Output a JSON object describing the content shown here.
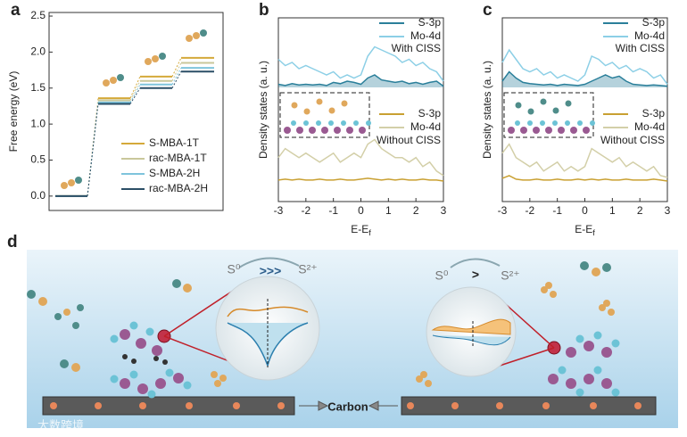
{
  "chart_data": [
    {
      "type": "step",
      "panel": "a",
      "ylabel": "Free energy (eV)",
      "ylim": [
        -0.2,
        2.55
      ],
      "yticks": [
        {
          "value": 0,
          "label": "0.0"
        },
        {
          "value": 0.5,
          "label": "0.5"
        },
        {
          "value": 1,
          "label": "1.0"
        },
        {
          "value": 1.5,
          "label": "1.5"
        },
        {
          "value": 2,
          "label": "2.0"
        },
        {
          "value": 2.5,
          "label": "2.5"
        }
      ],
      "series": [
        {
          "name": "S-MBA-1T",
          "color": "#d4a93a",
          "values": [
            0.0,
            1.36,
            1.66,
            1.92
          ]
        },
        {
          "name": "rac-MBA-1T",
          "color": "#c9c79b",
          "values": [
            0.0,
            1.33,
            1.6,
            1.85
          ]
        },
        {
          "name": "S-MBA-2H",
          "color": "#7ec4dc",
          "values": [
            0.0,
            1.3,
            1.55,
            1.78
          ]
        },
        {
          "name": "rac-MBA-2H",
          "color": "#2b4e66",
          "values": [
            0.0,
            1.28,
            1.5,
            1.73
          ]
        }
      ]
    },
    {
      "type": "dos",
      "panel": "b",
      "ylabel": "Density states (a. u.)",
      "xlabel": "E-E",
      "xlabel_sub": "f",
      "xlim": [
        -3,
        3
      ],
      "xticks": [
        -3,
        -2,
        -1,
        0,
        1,
        2,
        3
      ],
      "x": [
        -3,
        -2.75,
        -2.5,
        -2.25,
        -2,
        -1.75,
        -1.5,
        -1.25,
        -1,
        -0.75,
        -0.5,
        -0.25,
        0,
        0.25,
        0.5,
        0.75,
        1,
        1.25,
        1.5,
        1.75,
        2,
        2.25,
        2.5,
        2.75,
        3
      ],
      "subplots": [
        {
          "annotation": "With CISS",
          "ylim": [
            0,
            1
          ],
          "series": [
            {
              "name": "S-3p",
              "color": "#2a7f9a",
              "area": true,
              "values": [
                0.05,
                0.03,
                0.06,
                0.04,
                0.05,
                0.04,
                0.05,
                0.03,
                0.08,
                0.06,
                0.1,
                0.08,
                0.05,
                0.15,
                0.2,
                0.12,
                0.1,
                0.08,
                0.1,
                0.06,
                0.08,
                0.05,
                0.08,
                0.1,
                0.02
              ]
            },
            {
              "name": "Mo-4d",
              "color": "#8ccfe6",
              "values": [
                0.45,
                0.35,
                0.4,
                0.3,
                0.35,
                0.3,
                0.25,
                0.2,
                0.25,
                0.15,
                0.2,
                0.15,
                0.2,
                0.5,
                0.65,
                0.6,
                0.55,
                0.5,
                0.4,
                0.45,
                0.35,
                0.4,
                0.3,
                0.25,
                0.1
              ]
            }
          ]
        },
        {
          "annotation": "Without CISS",
          "ylim": [
            0,
            1
          ],
          "series": [
            {
              "name": "S-3p",
              "color": "#c9a032",
              "values": [
                0.05,
                0.06,
                0.05,
                0.06,
                0.05,
                0.05,
                0.06,
                0.05,
                0.05,
                0.06,
                0.05,
                0.05,
                0.06,
                0.07,
                0.06,
                0.05,
                0.06,
                0.05,
                0.06,
                0.05,
                0.05,
                0.06,
                0.05,
                0.05,
                0.04
              ]
            },
            {
              "name": "Mo-4d",
              "color": "#d3cfa8",
              "values": [
                0.3,
                0.4,
                0.35,
                0.3,
                0.35,
                0.3,
                0.25,
                0.3,
                0.35,
                0.25,
                0.3,
                0.35,
                0.3,
                0.45,
                0.5,
                0.4,
                0.35,
                0.3,
                0.3,
                0.25,
                0.3,
                0.2,
                0.25,
                0.15,
                0.1
              ]
            }
          ]
        }
      ]
    },
    {
      "type": "dos",
      "panel": "c",
      "ylabel": "Density states (a. u.)",
      "xlabel": "E-E",
      "xlabel_sub": "f",
      "xlim": [
        -3,
        3
      ],
      "xticks": [
        -3,
        -2,
        -1,
        0,
        1,
        2,
        3
      ],
      "x": [
        -3,
        -2.75,
        -2.5,
        -2.25,
        -2,
        -1.75,
        -1.5,
        -1.25,
        -1,
        -0.75,
        -0.5,
        -0.25,
        0,
        0.25,
        0.5,
        0.75,
        1,
        1.25,
        1.5,
        1.75,
        2,
        2.25,
        2.5,
        2.75,
        3
      ],
      "subplots": [
        {
          "annotation": "With CISS",
          "ylim": [
            0,
            1
          ],
          "series": [
            {
              "name": "S-3p",
              "color": "#2a7f9a",
              "area": true,
              "values": [
                0.1,
                0.25,
                0.15,
                0.08,
                0.06,
                0.05,
                0.04,
                0.05,
                0.03,
                0.05,
                0.04,
                0.03,
                0.05,
                0.1,
                0.15,
                0.2,
                0.15,
                0.18,
                0.1,
                0.05,
                0.04,
                0.03,
                0.04,
                0.03,
                0.02
              ]
            },
            {
              "name": "Mo-4d",
              "color": "#8ccfe6",
              "values": [
                0.4,
                0.6,
                0.45,
                0.3,
                0.25,
                0.3,
                0.2,
                0.25,
                0.15,
                0.2,
                0.15,
                0.1,
                0.2,
                0.5,
                0.45,
                0.35,
                0.4,
                0.3,
                0.35,
                0.25,
                0.3,
                0.25,
                0.15,
                0.2,
                0.05
              ]
            }
          ]
        },
        {
          "annotation": "Without CISS",
          "ylim": [
            0,
            1
          ],
          "series": [
            {
              "name": "S-3p",
              "color": "#c9a032",
              "values": [
                0.07,
                0.1,
                0.06,
                0.05,
                0.05,
                0.06,
                0.05,
                0.05,
                0.06,
                0.05,
                0.05,
                0.06,
                0.05,
                0.06,
                0.05,
                0.06,
                0.05,
                0.05,
                0.06,
                0.05,
                0.05,
                0.05,
                0.06,
                0.05,
                0.04
              ]
            },
            {
              "name": "Mo-4d",
              "color": "#d3cfa8",
              "values": [
                0.35,
                0.45,
                0.3,
                0.25,
                0.2,
                0.25,
                0.15,
                0.2,
                0.25,
                0.15,
                0.2,
                0.15,
                0.2,
                0.4,
                0.35,
                0.3,
                0.25,
                0.3,
                0.2,
                0.25,
                0.2,
                0.15,
                0.2,
                0.1,
                0.08
              ]
            }
          ]
        }
      ]
    }
  ],
  "panel_d": {
    "label": "d",
    "left_from": "S⁰",
    "left_relation": ">>>",
    "left_to": "S²⁺",
    "right_from": "S⁰",
    "right_relation": ">",
    "right_to": "S²⁺",
    "substrate": "Carbon",
    "watermark": "大数跨境"
  }
}
